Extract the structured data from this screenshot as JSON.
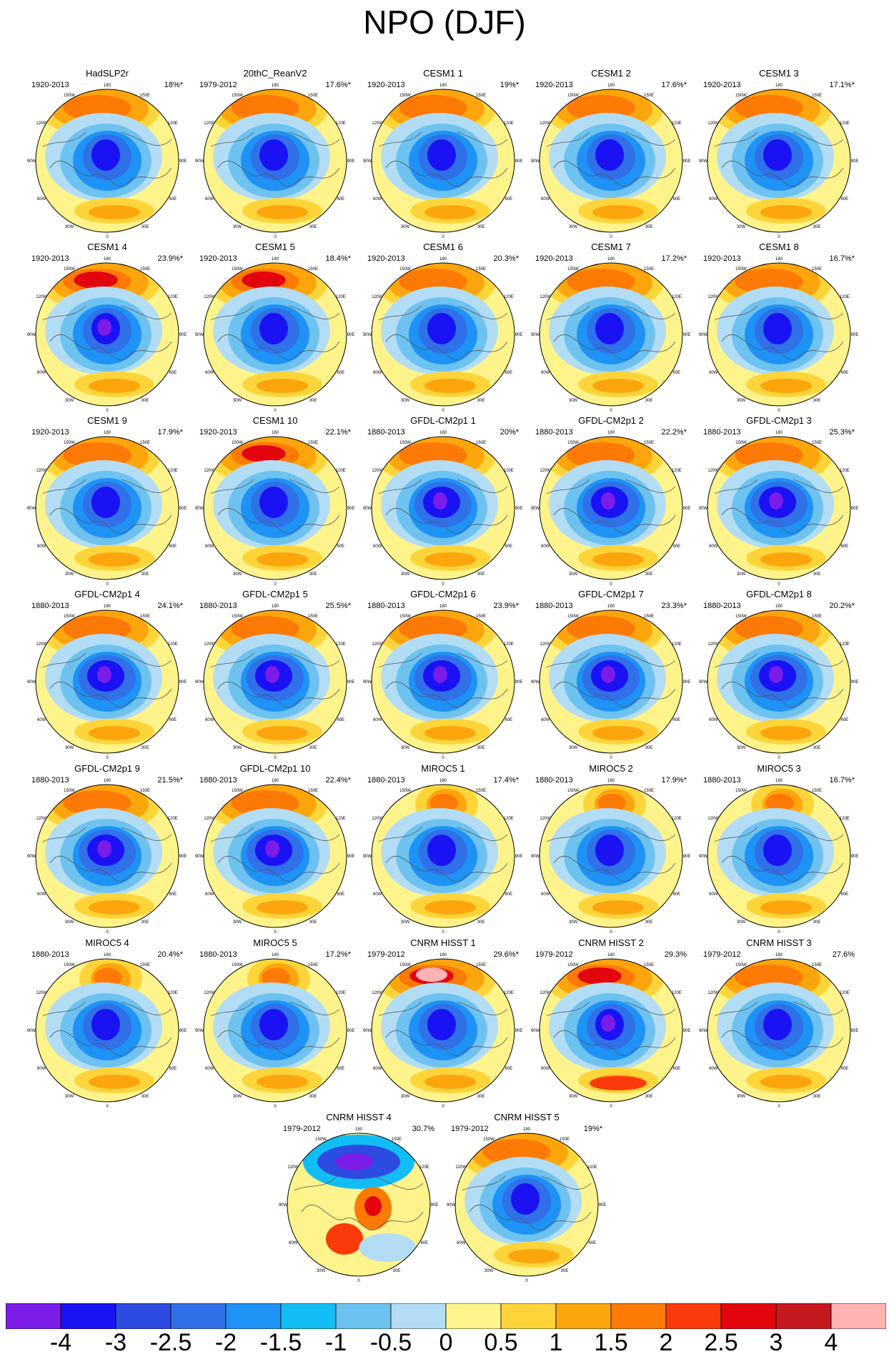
{
  "title": "NPO (DJF)",
  "map_labels": {
    "lon": [
      "180",
      "150E",
      "120E",
      "90E",
      "60E",
      "30E",
      "0",
      "30W",
      "60W",
      "90W",
      "120W",
      "150W"
    ]
  },
  "palette": [
    "#7b1ce8",
    "#1a12f2",
    "#2c4be0",
    "#3070e8",
    "#1e92f5",
    "#12bdf6",
    "#6ec2f0",
    "#b2ddf5",
    "#fff48c",
    "#fdd53b",
    "#fda50d",
    "#fd7a07",
    "#fa3a0a",
    "#e3050e",
    "#c6191f",
    "#ffb3b3"
  ],
  "colorbar_labels": [
    "-4",
    "-3",
    "-2.5",
    "-2",
    "-1.5",
    "-1",
    "-0.5",
    "0",
    "0.5",
    "1",
    "1.5",
    "2",
    "2.5",
    "3",
    "4"
  ],
  "panels": [
    {
      "title": "HadSLP2r",
      "years": "1920-2013",
      "pct": "18%*"
    },
    {
      "title": "20thC_ReanV2",
      "years": "1979-2012",
      "pct": "17.6%*"
    },
    {
      "title": "CESM1 1",
      "years": "1920-2013",
      "pct": "19%*"
    },
    {
      "title": "CESM1 2",
      "years": "1920-2013",
      "pct": "17.6%*"
    },
    {
      "title": "CESM1 3",
      "years": "1920-2013",
      "pct": "17.1%*"
    },
    {
      "title": "CESM1 4",
      "years": "1920-2013",
      "pct": "23.9%*"
    },
    {
      "title": "CESM1 5",
      "years": "1920-2013",
      "pct": "18.4%*"
    },
    {
      "title": "CESM1 6",
      "years": "1920-2013",
      "pct": "20.3%*"
    },
    {
      "title": "CESM1 7",
      "years": "1920-2013",
      "pct": "17.2%*"
    },
    {
      "title": "CESM1 8",
      "years": "1920-2013",
      "pct": "16.7%*"
    },
    {
      "title": "CESM1 9",
      "years": "1920-2013",
      "pct": "17.9%*"
    },
    {
      "title": "CESM1 10",
      "years": "1920-2013",
      "pct": "22.1%*"
    },
    {
      "title": "GFDL-CM2p1 1",
      "years": "1880-2013",
      "pct": "20%*"
    },
    {
      "title": "GFDL-CM2p1 2",
      "years": "1880-2013",
      "pct": "22.2%*"
    },
    {
      "title": "GFDL-CM2p1 3",
      "years": "1880-2013",
      "pct": "25.3%*"
    },
    {
      "title": "GFDL-CM2p1 4",
      "years": "1880-2013",
      "pct": "24.1%*"
    },
    {
      "title": "GFDL-CM2p1 5",
      "years": "1880-2013",
      "pct": "25.5%*"
    },
    {
      "title": "GFDL-CM2p1 6",
      "years": "1880-2013",
      "pct": "23.9%*"
    },
    {
      "title": "GFDL-CM2p1 7",
      "years": "1880-2013",
      "pct": "23.3%*"
    },
    {
      "title": "GFDL-CM2p1 8",
      "years": "1880-2013",
      "pct": "20.2%*"
    },
    {
      "title": "GFDL-CM2p1 9",
      "years": "1880-2013",
      "pct": "21.5%*"
    },
    {
      "title": "GFDL-CM2p1 10",
      "years": "1880-2013",
      "pct": "22.4%*"
    },
    {
      "title": "MIROC5 1",
      "years": "1880-2013",
      "pct": "17.4%*"
    },
    {
      "title": "MIROC5 2",
      "years": "1880-2013",
      "pct": "17.9%*"
    },
    {
      "title": "MIROC5 3",
      "years": "1880-2013",
      "pct": "16.7%*"
    },
    {
      "title": "MIROC5 4",
      "years": "1880-2013",
      "pct": "20.4%*"
    },
    {
      "title": "MIROC5 5",
      "years": "1880-2013",
      "pct": "17.2%*"
    },
    {
      "title": "CNRM HISST 1",
      "years": "1979-2012",
      "pct": "29.6%*"
    },
    {
      "title": "CNRM HISST 2",
      "years": "1979-2012",
      "pct": "29.3%"
    },
    {
      "title": "CNRM HISST 3",
      "years": "1979-2012",
      "pct": "27.6%"
    },
    {
      "title": "CNRM HISST 4",
      "years": "1979-2012",
      "pct": "30.7%"
    },
    {
      "title": "CNRM HISST 5",
      "years": "1979-2012",
      "pct": "19%*"
    }
  ]
}
